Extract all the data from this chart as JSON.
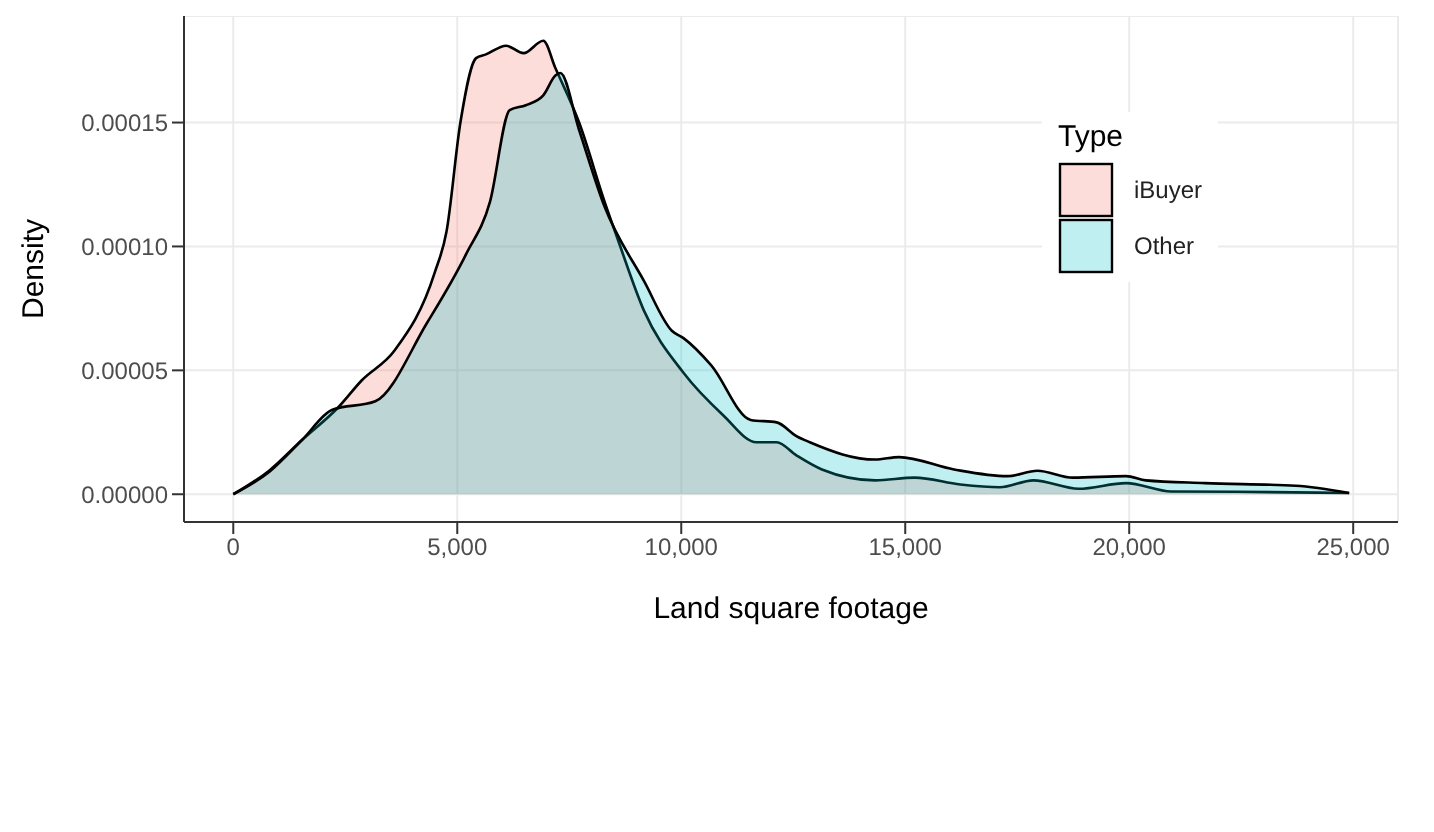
{
  "chart_data": {
    "type": "area",
    "xlabel": "Land square footage",
    "ylabel": "Density",
    "legend_title": "Type",
    "legend": "top right",
    "grid": true,
    "xlim": [
      -1100,
      26000
    ],
    "ylim": [
      -1.12e-05,
      0.000193
    ],
    "xticks": [
      {
        "value": 0,
        "label": "0"
      },
      {
        "value": 5000,
        "label": "5,000"
      },
      {
        "value": 10000,
        "label": "10,000"
      },
      {
        "value": 15000,
        "label": "15,000"
      },
      {
        "value": 20000,
        "label": "20,000"
      },
      {
        "value": 25000,
        "label": "25,000"
      }
    ],
    "yticks": [
      {
        "value": 0,
        "label": "0.00000"
      },
      {
        "value": 5e-05,
        "label": "0.00005"
      },
      {
        "value": 0.0001,
        "label": "0.00010"
      },
      {
        "value": 0.00015,
        "label": "0.00015"
      }
    ],
    "series": [
      {
        "name": "iBuyer",
        "color": "#f8766d",
        "x": [
          0,
          800,
          1540,
          2340,
          2870,
          3600,
          4500,
          4760,
          5070,
          5420,
          5640,
          6090,
          6480,
          6920,
          7190,
          7720,
          8290,
          8600,
          9170,
          10050,
          10930,
          11680,
          12130,
          12570,
          13140,
          14330,
          15210,
          16230,
          17110,
          17860,
          18870,
          19930,
          20940,
          22400,
          24910
        ],
        "values": [
          0,
          9.5e-06,
          2.2e-05,
          3.5e-05,
          4.6e-05,
          5.8e-05,
          8.96e-05,
          0.000106,
          0.00015,
          0.000176,
          0.0001775,
          0.000181,
          0.000178,
          0.000183,
          0.000172,
          0.00015,
          0.000118,
          0.000102,
          7.4e-05,
          4.9e-05,
          3.2e-05,
          2.1e-05,
          2.1e-05,
          1.57e-05,
          1e-05,
          5.6e-06,
          6.7e-06,
          3.9e-06,
          2.8e-06,
          5.6e-06,
          2.2e-06,
          4.5e-06,
          1.1e-06,
          1e-06,
          5e-07
        ]
      },
      {
        "name": "Other",
        "color": "#00bfc4",
        "x": [
          0,
          800,
          1540,
          2200,
          3170,
          4320,
          5200,
          5730,
          6170,
          6530,
          6920,
          7190,
          7300,
          7720,
          8290,
          9170,
          9790,
          10050,
          10670,
          11550,
          12130,
          12570,
          12870,
          14330,
          14860,
          16090,
          17280,
          17950,
          18740,
          19930,
          20370,
          21690,
          23720,
          24910
        ],
        "values": [
          0,
          9e-06,
          2.2e-05,
          3.4e-05,
          3.75e-05,
          6.9e-05,
          9.7e-05,
          0.000118,
          0.000155,
          0.000157,
          0.000161,
          0.000169,
          0.00017,
          0.000147,
          0.000116,
          8.6e-05,
          6.6e-05,
          6.3e-05,
          5.2e-05,
          3e-05,
          2.9e-05,
          2.35e-05,
          2.1e-05,
          1.4e-05,
          1.5e-05,
          1e-05,
          7.3e-06,
          9.5e-06,
          6.7e-06,
          7.3e-06,
          5.6e-06,
          4.5e-06,
          3.4e-06,
          5e-07
        ]
      }
    ]
  }
}
